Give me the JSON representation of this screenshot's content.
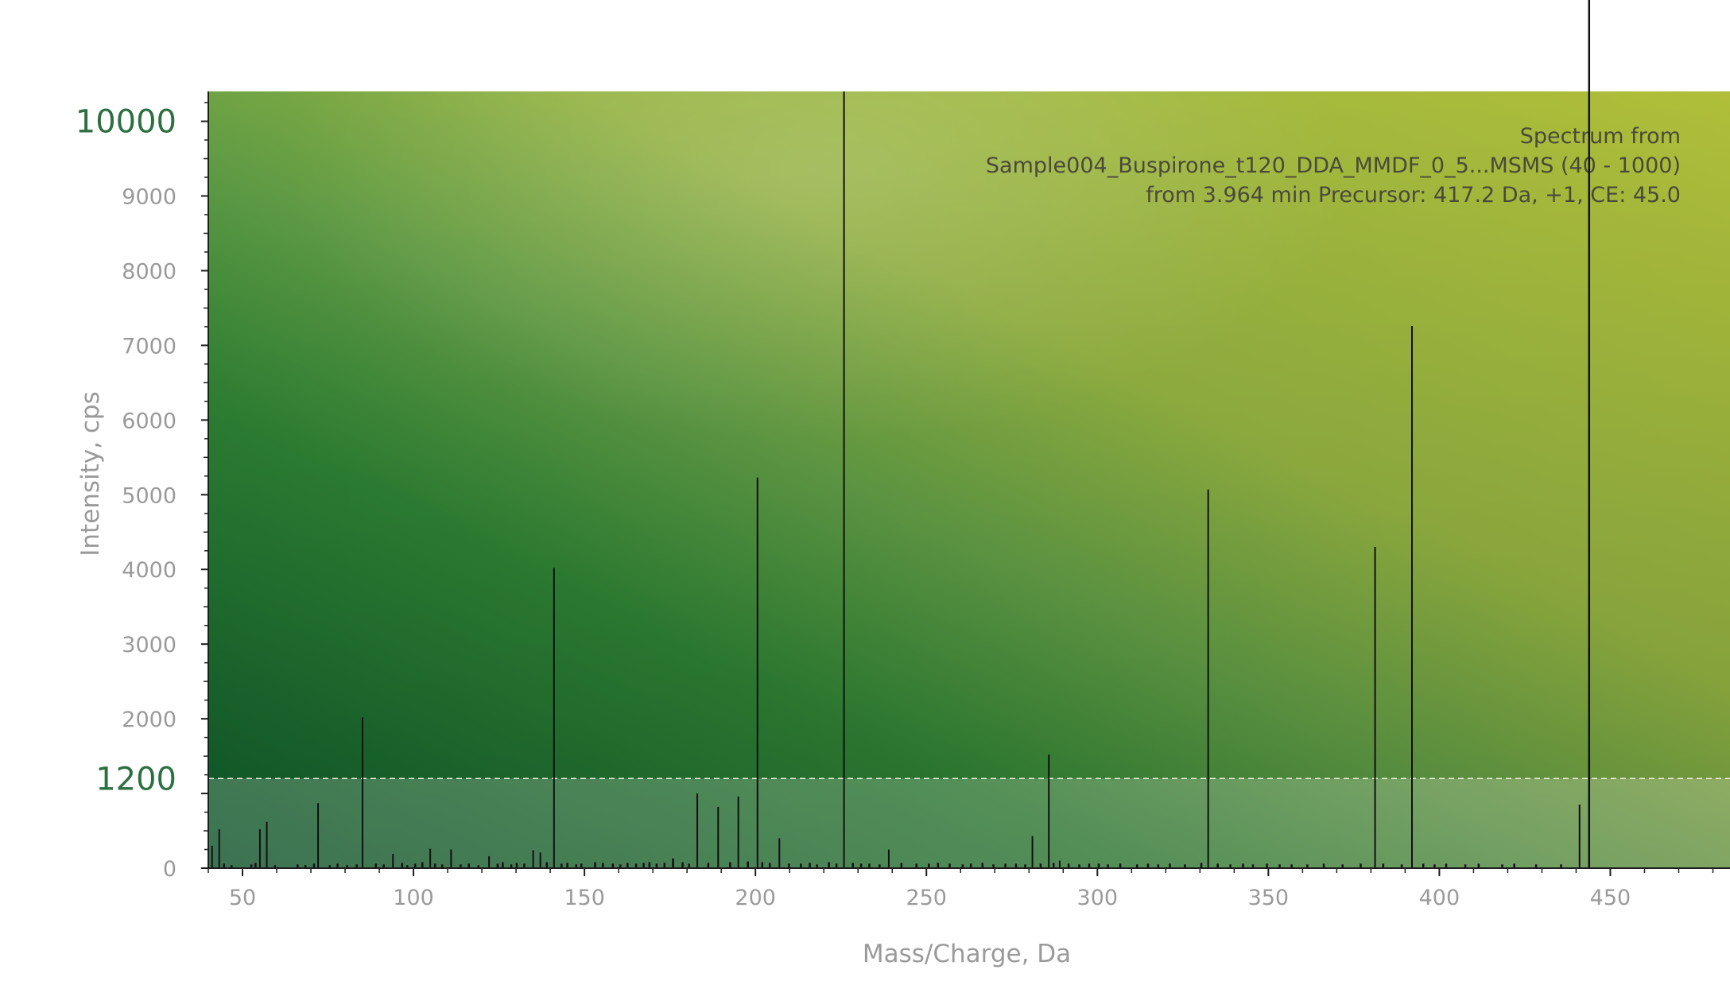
{
  "chart_data": {
    "type": "bar",
    "title_lines": [
      "Spectrum from",
      "Sample004_Buspirone_t120_DDA_MMDF_0_5...MSMS (40 - 1000)",
      "from 3.964 min Precursor: 417.2 Da, +1, CE: 45.0"
    ],
    "xlabel": "Mass/Charge, Da",
    "ylabel": "Intensity, cps",
    "xlim": [
      40,
      485
    ],
    "ylim": [
      0,
      10400
    ],
    "x_ticks": [
      50,
      100,
      150,
      200,
      250,
      300,
      350,
      400,
      450
    ],
    "y_ticks": [
      0,
      1000,
      2000,
      3000,
      4000,
      5000,
      6000,
      7000,
      8000,
      9000,
      10000
    ],
    "y_tick_labels": [
      "0",
      "",
      "2000",
      "3000",
      "4000",
      "5000",
      "6000",
      "7000",
      "8000",
      "9000",
      "10000"
    ],
    "highlight_threshold": {
      "value": 1200,
      "label": "1200"
    },
    "peaks": {
      "mz": [
        41.1,
        43.2,
        55.1,
        57.1,
        72.1,
        85.1,
        94.0,
        104.9,
        111.0,
        122.1,
        135.0,
        137.1,
        141.1,
        183.0,
        189.1,
        195.0,
        200.6,
        207.0,
        225.9,
        239.0,
        281.0,
        285.8,
        289.0,
        332.4,
        381.2,
        392.0,
        441.0
      ],
      "intensity": [
        300,
        520,
        520,
        620,
        870,
        2020,
        190,
        260,
        250,
        160,
        240,
        210,
        4020,
        1000,
        820,
        960,
        5230,
        400,
        10400,
        250,
        430,
        1520,
        100,
        5070,
        4300,
        7260,
        850
      ]
    },
    "noise": {
      "mz": [
        44.6,
        46.8,
        52.6,
        53.8,
        59.5,
        66.1,
        68.4,
        70.9,
        75.5,
        77.8,
        80.6,
        83.4,
        89.0,
        91.3,
        96.7,
        98.2,
        100.5,
        102.6,
        106.3,
        108.4,
        113.8,
        116.2,
        119.0,
        124.6,
        126.1,
        128.6,
        130.2,
        132.4,
        139.0,
        143.3,
        145.0,
        147.6,
        149.1,
        153.1,
        155.4,
        158.3,
        160.5,
        162.6,
        165.1,
        167.3,
        169.0,
        171.1,
        173.4,
        175.9,
        178.7,
        180.6,
        186.2,
        192.6,
        197.8,
        202.0,
        204.2,
        209.8,
        213.3,
        215.9,
        218.0,
        221.5,
        223.7,
        228.5,
        230.9,
        233.3,
        236.3,
        242.7,
        247.1,
        250.7,
        253.4,
        256.8,
        260.6,
        263.0,
        266.4,
        269.6,
        273.1,
        276.2,
        278.9,
        283.4,
        287.2,
        291.6,
        294.7,
        297.6,
        300.4,
        303.1,
        306.7,
        311.6,
        314.8,
        317.8,
        321.2,
        325.6,
        330.4,
        335.2,
        338.9,
        342.6,
        345.5,
        349.6,
        353.3,
        356.8,
        361.4,
        366.2,
        371.7,
        377.0,
        383.6,
        389.0,
        395.3,
        398.6,
        402.0,
        407.6,
        411.5,
        418.4,
        421.9,
        428.3,
        435.6,
        443.8
      ],
      "intensity": [
        60,
        40,
        50,
        70,
        40,
        50,
        40,
        60,
        40,
        60,
        40,
        50,
        60,
        50,
        70,
        40,
        60,
        80,
        60,
        50,
        50,
        60,
        40,
        60,
        80,
        50,
        70,
        60,
        80,
        60,
        70,
        50,
        60,
        80,
        70,
        60,
        50,
        70,
        60,
        70,
        80,
        60,
        70,
        130,
        80,
        60,
        70,
        80,
        90,
        80,
        70,
        60,
        60,
        70,
        50,
        80,
        60,
        70,
        60,
        60,
        50,
        70,
        60,
        60,
        70,
        60,
        50,
        60,
        70,
        50,
        60,
        60,
        50,
        60,
        70,
        60,
        50,
        60,
        60,
        50,
        60,
        50,
        60,
        50,
        60,
        50,
        70,
        60,
        50,
        60,
        50,
        60,
        50,
        50,
        50,
        60,
        50,
        60,
        60,
        50,
        60,
        50,
        60,
        50,
        60,
        50,
        60,
        50,
        50
      ]
    }
  }
}
